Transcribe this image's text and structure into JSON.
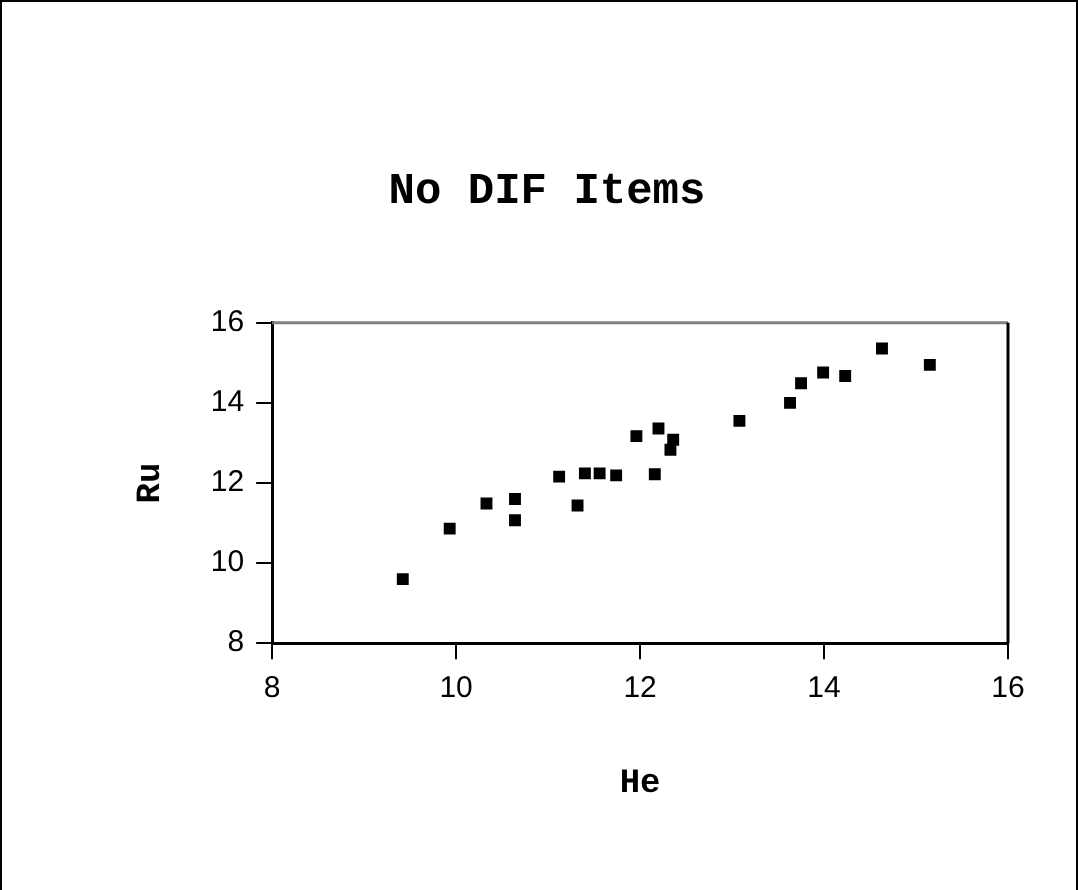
{
  "chart_data": {
    "type": "scatter",
    "title": "No DIF Items",
    "xlabel": "He",
    "ylabel": "Ru",
    "xlim": [
      8,
      16
    ],
    "xticks": [
      8,
      10,
      12,
      14,
      16
    ],
    "ylim": [
      8,
      16
    ],
    "yticks": [
      8,
      10,
      12,
      14,
      16
    ],
    "grid": false,
    "legend": false,
    "marker": "square",
    "series": [
      {
        "color": "#000000",
        "x": [
          9.42,
          9.93,
          10.33,
          10.64,
          10.64,
          11.32,
          11.12,
          11.4,
          11.56,
          11.74,
          11.96,
          12.2,
          12.36,
          12.33,
          12.16,
          13.08,
          13.63,
          13.75,
          13.99,
          14.23,
          14.63,
          15.15
        ],
        "values": [
          9.6,
          10.86,
          11.49,
          11.6,
          11.07,
          11.44,
          12.16,
          12.24,
          12.24,
          12.19,
          13.17,
          13.36,
          13.08,
          12.83,
          12.22,
          13.55,
          14.0,
          14.49,
          14.76,
          14.67,
          15.36,
          14.95
        ]
      }
    ]
  }
}
